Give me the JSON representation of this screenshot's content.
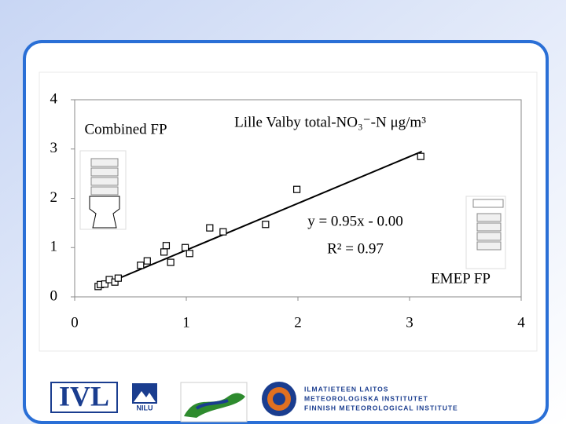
{
  "chart_data": {
    "type": "scatter",
    "title": "Lille Valby  total-NO₃⁻-N μg/m³",
    "x": [
      0.21,
      0.23,
      0.27,
      0.31,
      0.36,
      0.39,
      0.59,
      0.65,
      0.8,
      0.82,
      0.86,
      0.99,
      1.03,
      1.21,
      1.33,
      1.71,
      1.99,
      3.1
    ],
    "values": [
      0.21,
      0.25,
      0.26,
      0.35,
      0.3,
      0.38,
      0.64,
      0.73,
      0.91,
      1.04,
      0.7,
      1.0,
      0.88,
      1.4,
      1.32,
      1.47,
      2.18,
      2.85
    ],
    "color": "#000000",
    "trendline": {
      "x": [
        0.19,
        3.11
      ],
      "values": [
        0.18,
        2.95
      ],
      "color": "#000000"
    },
    "xlim": [
      0,
      4
    ],
    "xticks": [
      0,
      1,
      2,
      3,
      4
    ],
    "ylim": [
      0,
      4
    ],
    "yticks": [
      0,
      1,
      2,
      3,
      4
    ],
    "grid": false,
    "annotations": [
      "Combined FP",
      "y = 0.95x - 0.00",
      "R² = 0.97",
      "EMEP FP"
    ]
  },
  "logos": [
    "IVL",
    "NILU",
    "ILMATIETEEN LAITOS",
    "METEOROLOGISKA INSTITUTET",
    "FINNISH METEOROLOGICAL INSTITUTE"
  ]
}
